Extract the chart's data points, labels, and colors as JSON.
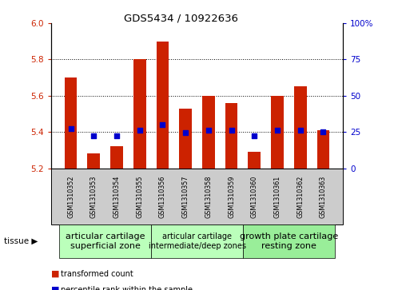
{
  "title": "GDS5434 / 10922636",
  "samples": [
    "GSM1310352",
    "GSM1310353",
    "GSM1310354",
    "GSM1310355",
    "GSM1310356",
    "GSM1310357",
    "GSM1310358",
    "GSM1310359",
    "GSM1310360",
    "GSM1310361",
    "GSM1310362",
    "GSM1310363"
  ],
  "bar_values": [
    5.7,
    5.28,
    5.32,
    5.8,
    5.9,
    5.53,
    5.6,
    5.56,
    5.29,
    5.6,
    5.65,
    5.41
  ],
  "bar_bottom": 5.2,
  "percentile_values": [
    5.42,
    5.38,
    5.38,
    5.41,
    5.44,
    5.395,
    5.41,
    5.41,
    5.38,
    5.41,
    5.41,
    5.4
  ],
  "ylim_left": [
    5.2,
    6.0
  ],
  "ylim_right": [
    0,
    100
  ],
  "yticks_left": [
    5.2,
    5.4,
    5.6,
    5.8,
    6.0
  ],
  "yticks_right": [
    0,
    25,
    50,
    75,
    100
  ],
  "bar_color": "#cc2200",
  "dot_color": "#0000cc",
  "tick_label_color_left": "#cc2200",
  "tick_label_color_right": "#0000cc",
  "bar_width": 0.55,
  "group_colors": [
    "#bbffbb",
    "#bbffbb",
    "#99ee99"
  ],
  "group_labels": [
    "articular cartilage\nsuperficial zone",
    "articular cartilage\nintermediate/deep zones",
    "growth plate cartilage\nresting zone"
  ],
  "group_ranges": [
    [
      0,
      3
    ],
    [
      4,
      7
    ],
    [
      8,
      11
    ]
  ],
  "group_font_sizes": [
    8,
    7,
    8
  ],
  "legend_bar_label": "transformed count",
  "legend_dot_label": "percentile rank within the sample",
  "fig_width": 4.93,
  "fig_height": 3.63,
  "dpi": 100
}
